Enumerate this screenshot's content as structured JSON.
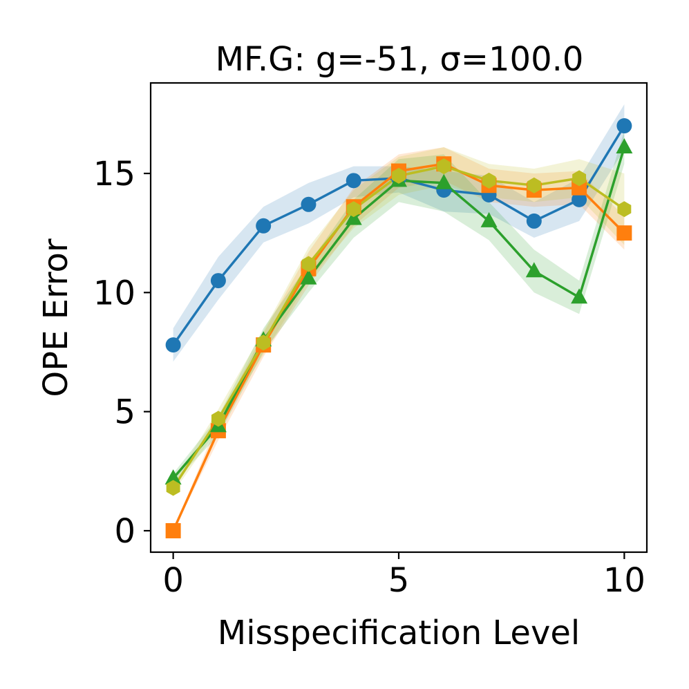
{
  "chart_data": {
    "type": "line",
    "title": "MF.G: g=-51, σ=100.0",
    "xlabel": "Misspecification Level",
    "ylabel": "OPE Error",
    "x": [
      0,
      1,
      2,
      3,
      4,
      5,
      6,
      7,
      8,
      9,
      10
    ],
    "xlim": [
      -0.5,
      10.5
    ],
    "ylim": [
      -0.9,
      18.8
    ],
    "xticks": [
      0,
      5,
      10
    ],
    "yticks": [
      0,
      5,
      10,
      15
    ],
    "xtick_labels": [
      "0",
      "5",
      "10"
    ],
    "ytick_labels": [
      "0",
      "5",
      "10",
      "15"
    ],
    "grid": false,
    "series": [
      {
        "color": "#1f77b4",
        "marker": "circle",
        "values": [
          7.8,
          10.5,
          12.8,
          13.7,
          14.7,
          14.8,
          14.3,
          14.1,
          13.0,
          13.9,
          17.0
        ],
        "lower": [
          7.1,
          9.7,
          12.1,
          12.9,
          14.0,
          14.2,
          13.4,
          13.3,
          12.3,
          13.0,
          16.0
        ],
        "upper": [
          8.5,
          11.5,
          13.6,
          14.6,
          15.3,
          15.3,
          15.1,
          14.9,
          13.8,
          14.8,
          17.9
        ]
      },
      {
        "color": "#ff7f0e",
        "marker": "square",
        "values": [
          0.0,
          4.2,
          7.8,
          11.0,
          13.6,
          15.1,
          15.4,
          14.5,
          14.3,
          14.4,
          12.5
        ],
        "lower": [
          0.0,
          3.8,
          7.3,
          10.3,
          12.8,
          14.4,
          14.7,
          13.8,
          13.6,
          13.7,
          11.8
        ],
        "upper": [
          0.0,
          4.6,
          8.3,
          11.7,
          14.4,
          15.8,
          16.1,
          15.2,
          15.0,
          15.1,
          13.2
        ]
      },
      {
        "color": "#2ca02c",
        "marker": "triangle",
        "values": [
          2.2,
          4.4,
          8.0,
          10.6,
          13.1,
          14.7,
          14.6,
          13.0,
          10.9,
          9.8,
          16.1
        ],
        "lower": [
          2.0,
          4.0,
          7.5,
          10.0,
          12.3,
          13.8,
          13.4,
          12.2,
          10.0,
          9.1,
          15.4
        ],
        "upper": [
          2.4,
          4.8,
          8.5,
          11.2,
          13.9,
          15.6,
          15.8,
          13.8,
          11.8,
          10.5,
          16.8
        ]
      },
      {
        "color": "#bcbd22",
        "marker": "hexagon",
        "values": [
          1.8,
          4.7,
          7.9,
          11.2,
          13.5,
          14.9,
          15.3,
          14.7,
          14.5,
          14.8,
          13.5
        ],
        "lower": [
          1.6,
          4.3,
          7.4,
          10.5,
          12.7,
          14.1,
          14.5,
          14.0,
          13.8,
          14.0,
          12.0
        ],
        "upper": [
          2.0,
          5.1,
          8.4,
          11.9,
          14.3,
          15.7,
          16.1,
          15.4,
          15.2,
          15.6,
          15.0
        ]
      }
    ]
  }
}
